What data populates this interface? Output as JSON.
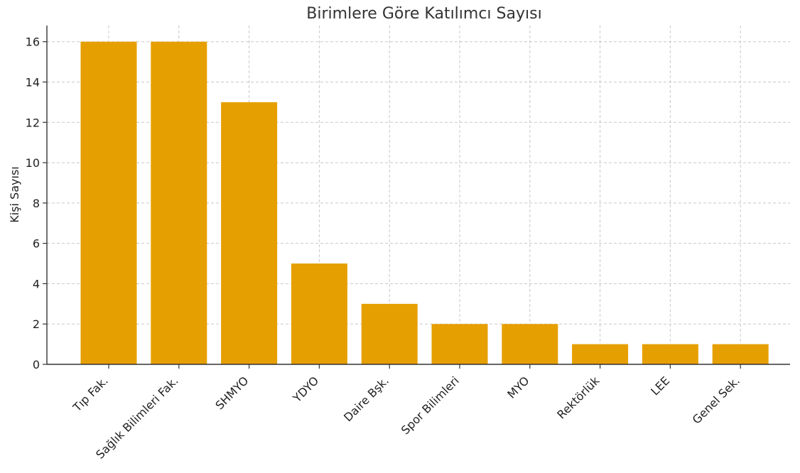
{
  "chart_data": {
    "type": "bar",
    "title": "Birimlere Göre Katılımcı Sayısı",
    "xlabel": "",
    "ylabel": "Kişi Sayısı",
    "categories": [
      "Tıp Fak.",
      "Sağlık Bilimleri Fak.",
      "SHMYO",
      "YDYO",
      "Daire Bşk.",
      "Spor Bilimleri",
      "MYO",
      "Rektörlük",
      "LEE",
      "Genel Sek."
    ],
    "values": [
      16,
      16,
      13,
      5,
      3,
      2,
      2,
      1,
      1,
      1
    ],
    "ylim": [
      0,
      16.8
    ],
    "yticks": [
      0,
      2,
      4,
      6,
      8,
      10,
      12,
      14,
      16
    ],
    "grid": true,
    "bar_color": "#E69F00"
  }
}
